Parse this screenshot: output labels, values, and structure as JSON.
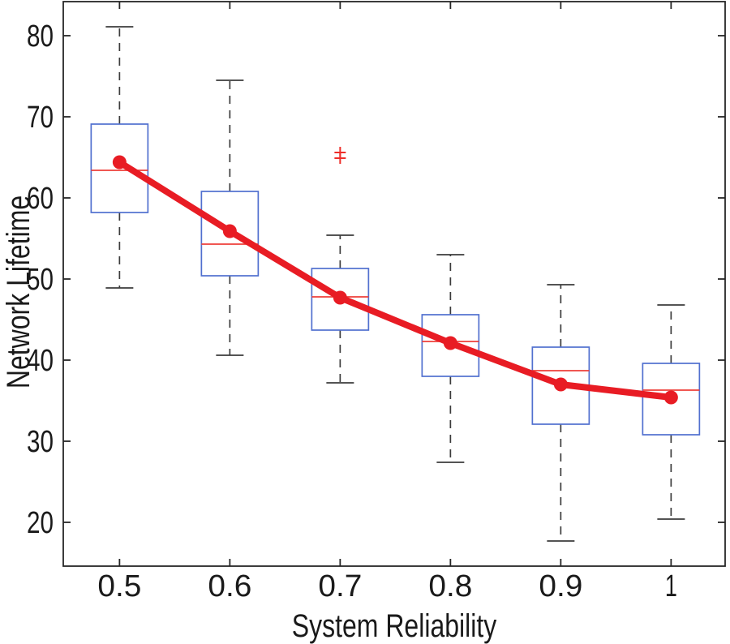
{
  "figure": {
    "background": "#ffffff",
    "title": ""
  },
  "chart_data": {
    "type": "boxplot",
    "title": "",
    "xlabel": "System Reliability",
    "ylabel": "Network Lifetime",
    "grid": false,
    "legend": "none",
    "xlim": [
      0.449,
      1.049
    ],
    "ylim": [
      14.6,
      84.2
    ],
    "y_ticks": [
      20,
      30,
      40,
      50,
      60,
      70,
      80
    ],
    "x_ticks": [
      {
        "value": 0.5,
        "label": "0.5"
      },
      {
        "value": 0.6,
        "label": "0.6"
      },
      {
        "value": 0.7,
        "label": "0.7"
      },
      {
        "value": 0.8,
        "label": "0.8"
      },
      {
        "value": 0.9,
        "label": "0.9"
      },
      {
        "value": 1.0,
        "label": "1"
      }
    ],
    "boxes": [
      {
        "x": 0.5,
        "whisker_low": 48.9,
        "q1": 58.2,
        "median": 63.4,
        "q3": 69.1,
        "whisker_high": 81.1,
        "mean": 64.4,
        "outliers": []
      },
      {
        "x": 0.6,
        "whisker_low": 40.6,
        "q1": 50.4,
        "median": 54.3,
        "q3": 60.8,
        "whisker_high": 74.5,
        "mean": 55.9,
        "outliers": []
      },
      {
        "x": 0.7,
        "whisker_low": 37.2,
        "q1": 43.7,
        "median": 47.8,
        "q3": 51.3,
        "whisker_high": 55.4,
        "mean": 47.7,
        "outliers": [
          65.6,
          64.9
        ]
      },
      {
        "x": 0.8,
        "whisker_low": 27.4,
        "q1": 38.0,
        "median": 42.3,
        "q3": 45.6,
        "whisker_high": 53.0,
        "mean": 42.1,
        "outliers": []
      },
      {
        "x": 0.9,
        "whisker_low": 17.7,
        "q1": 32.1,
        "median": 38.7,
        "q3": 41.6,
        "whisker_high": 49.3,
        "mean": 37.0,
        "outliers": []
      },
      {
        "x": 1.0,
        "whisker_low": 20.4,
        "q1": 30.8,
        "median": 36.3,
        "q3": 39.6,
        "whisker_high": 46.8,
        "mean": 35.4,
        "outliers": []
      }
    ],
    "series": [
      {
        "name": "mean-line",
        "x": [
          0.5,
          0.6,
          0.7,
          0.8,
          0.9,
          1.0
        ],
        "values": [
          64.4,
          55.9,
          47.7,
          42.1,
          37.0,
          35.4
        ]
      }
    ],
    "colors": {
      "box": "#5170cf",
      "median": "#ee3f3a",
      "mean_line": "#e81c24",
      "outlier": "#ee2e2a",
      "whisker": "#3c3c3c",
      "axis": "#262626",
      "text": "#1a1a1a"
    }
  }
}
